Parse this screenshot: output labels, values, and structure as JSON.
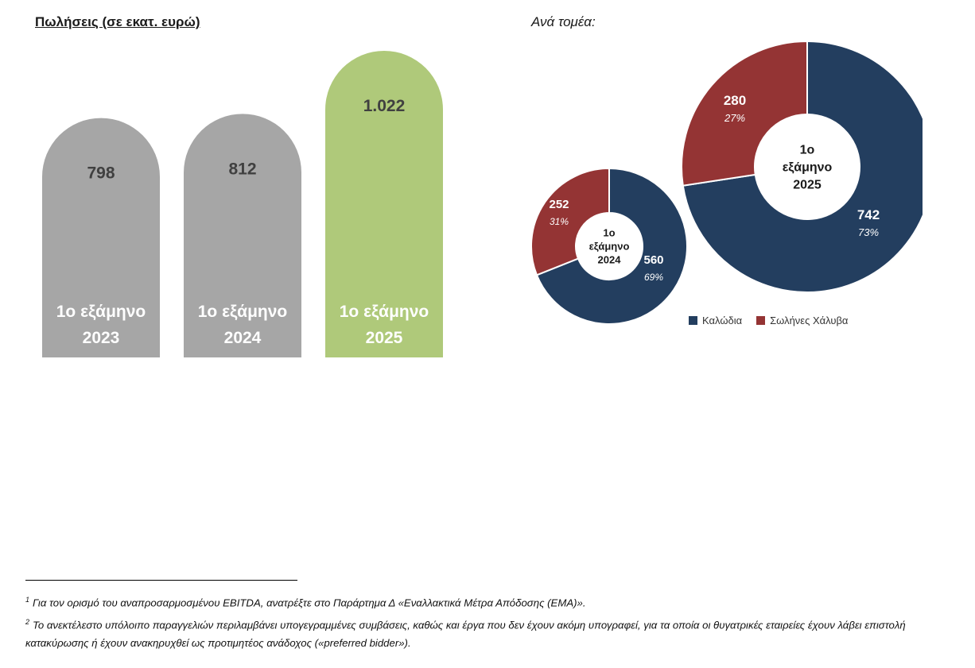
{
  "bar_section": {
    "title": "Πωλήσεις (σε εκατ. ευρώ)"
  },
  "sector_section": {
    "title": "Ανά τομέα:"
  },
  "chart_data": [
    {
      "type": "bar",
      "categories": [
        "1ο εξάμηνο 2023",
        "1ο εξάμηνο 2024",
        "1ο εξάμηνο 2025"
      ],
      "category_lines": [
        [
          "1ο εξάμηνο",
          "2023"
        ],
        [
          "1ο εξάμηνο",
          "2024"
        ],
        [
          "1ο εξάμηνο",
          "2025"
        ]
      ],
      "values": [
        798,
        812,
        1022
      ],
      "value_labels": [
        "798",
        "812",
        "1.022"
      ],
      "colors": [
        "#a6a6a6",
        "#a6a6a6",
        "#afc97a"
      ],
      "ylim": [
        0,
        1022
      ]
    },
    {
      "type": "pie",
      "variant": "donut",
      "center_label": [
        "1ο",
        "εξάμηνο",
        "2024"
      ],
      "slices": [
        {
          "name": "Καλώδια",
          "value": 560,
          "label": "560",
          "pct": "69%",
          "color": "#233e5f"
        },
        {
          "name": "Σωλήνες Χάλυβα",
          "value": 252,
          "label": "252",
          "pct": "31%",
          "color": "#943434"
        }
      ]
    },
    {
      "type": "pie",
      "variant": "donut",
      "center_label": [
        "1ο",
        "εξάμηνο",
        "2025"
      ],
      "slices": [
        {
          "name": "Καλώδια",
          "value": 742,
          "label": "742",
          "pct": "73%",
          "color": "#233e5f"
        },
        {
          "name": "Σωλήνες Χάλυβα",
          "value": 280,
          "label": "280",
          "pct": "27%",
          "color": "#943434"
        }
      ]
    }
  ],
  "legend": [
    {
      "name": "Καλώδια",
      "color": "#233e5f"
    },
    {
      "name": "Σωλήνες Χάλυβα",
      "color": "#943434"
    }
  ],
  "footnotes": [
    {
      "mark": "1",
      "text": "Για τον ορισμό του αναπροσαρμοσμένου EBITDA, ανατρέξτε στο Παράρτημα Δ «Εναλλακτικά Μέτρα Απόδοσης (ΕΜΑ)»."
    },
    {
      "mark": "2",
      "text": "Το ανεκτέλεστο υπόλοιπο παραγγελιών περιλαμβάνει υπογεγραμμένες συμβάσεις, καθώς και έργα που δεν έχουν ακόμη υπογραφεί, για τα οποία οι θυγατρικές εταιρείες έχουν λάβει επιστολή κατακύρωσης ή έχουν ανακηρυχθεί ως προτιμητέος ανάδοχος («preferred bidder»)."
    }
  ]
}
